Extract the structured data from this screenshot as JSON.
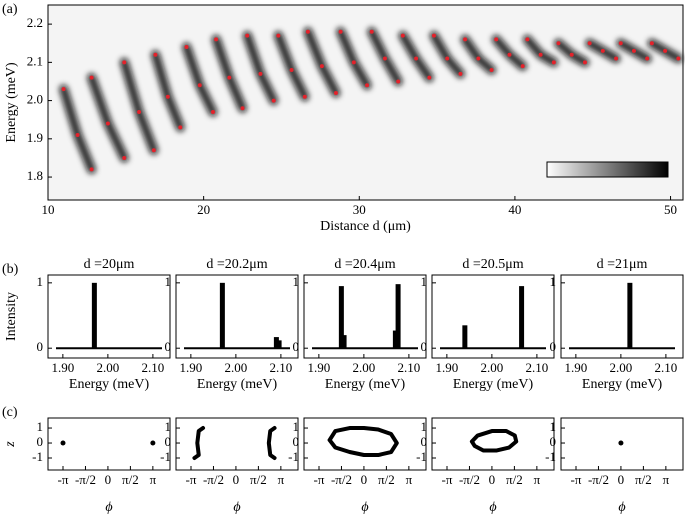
{
  "chart_data": [
    {
      "type": "scatter",
      "panel_label": "(a)",
      "xlabel": "Distance d (μm)",
      "ylabel": "Energy (meV)",
      "color": "#e3222b",
      "xlim": [
        10,
        50.8
      ],
      "ylim": [
        1.74,
        2.25
      ],
      "xticks": [
        10,
        20,
        30,
        40,
        50
      ],
      "yticks": [
        1.8,
        1.9,
        {
          "value": 2,
          "label": "2.0"
        },
        2.1,
        2.2
      ],
      "series": [
        {
          "x": [
            11.0,
            11.9,
            12.8
          ],
          "y": [
            2.03,
            1.91,
            1.82
          ]
        },
        {
          "x": [
            12.8,
            13.85,
            14.9
          ],
          "y": [
            2.06,
            1.94,
            1.85
          ]
        },
        {
          "x": [
            14.9,
            15.85,
            16.8
          ],
          "y": [
            2.1,
            1.97,
            1.87
          ]
        },
        {
          "x": [
            16.9,
            17.7,
            18.5
          ],
          "y": [
            2.12,
            2.01,
            1.93
          ]
        },
        {
          "x": [
            18.9,
            19.75,
            20.6
          ],
          "y": [
            2.14,
            2.04,
            1.97
          ]
        },
        {
          "x": [
            20.8,
            21.65,
            22.5
          ],
          "y": [
            2.16,
            2.06,
            1.98
          ]
        },
        {
          "x": [
            22.8,
            23.65,
            24.5
          ],
          "y": [
            2.17,
            2.07,
            2.0
          ]
        },
        {
          "x": [
            24.8,
            25.65,
            26.5
          ],
          "y": [
            2.17,
            2.08,
            2.01
          ]
        },
        {
          "x": [
            26.7,
            27.6,
            28.5
          ],
          "y": [
            2.18,
            2.09,
            2.02
          ]
        },
        {
          "x": [
            28.8,
            29.65,
            30.5
          ],
          "y": [
            2.18,
            2.1,
            2.04
          ]
        },
        {
          "x": [
            30.8,
            31.65,
            32.5
          ],
          "y": [
            2.18,
            2.11,
            2.05
          ]
        },
        {
          "x": [
            32.8,
            33.65,
            34.5
          ],
          "y": [
            2.17,
            2.11,
            2.06
          ]
        },
        {
          "x": [
            34.8,
            35.65,
            36.5
          ],
          "y": [
            2.17,
            2.11,
            2.07
          ]
        },
        {
          "x": [
            36.8,
            37.65,
            38.5
          ],
          "y": [
            2.16,
            2.11,
            2.08
          ]
        },
        {
          "x": [
            38.8,
            39.65,
            40.5
          ],
          "y": [
            2.16,
            2.12,
            2.09
          ]
        },
        {
          "x": [
            40.8,
            41.65,
            42.5
          ],
          "y": [
            2.16,
            2.12,
            2.1
          ]
        },
        {
          "x": [
            42.8,
            43.65,
            44.5
          ],
          "y": [
            2.15,
            2.12,
            2.1
          ]
        },
        {
          "x": [
            44.8,
            45.65,
            46.5
          ],
          "y": [
            2.15,
            2.13,
            2.11
          ]
        },
        {
          "x": [
            46.8,
            47.65,
            48.5
          ],
          "y": [
            2.15,
            2.13,
            2.11
          ]
        },
        {
          "x": [
            48.8,
            49.65,
            50.5
          ],
          "y": [
            2.15,
            2.13,
            2.11
          ]
        }
      ]
    },
    {
      "type": "bar",
      "panel_label": "(b)",
      "title": "d =20μm",
      "ylabel": "Intensity",
      "xlabel": "Energy (meV)",
      "color": "#000000",
      "xlim": [
        1.867,
        2.138
      ],
      "ylim": [
        -0.15,
        1.12
      ],
      "xticks": [
        {
          "value": 1.9,
          "label": "1.90"
        },
        {
          "value": 2,
          "label": "2.00"
        },
        {
          "value": 2.1,
          "label": "2.10"
        }
      ],
      "yticks": [
        0,
        1
      ],
      "x": [
        1.97
      ],
      "values": [
        1.0
      ]
    },
    {
      "type": "bar",
      "title": "d =20.2μm",
      "xlabel": "Energy (meV)",
      "color": "#000000",
      "xlim": [
        1.867,
        2.138
      ],
      "ylim": [
        -0.15,
        1.12
      ],
      "xticks": [
        {
          "value": 1.9,
          "label": "1.90"
        },
        {
          "value": 2,
          "label": "2.00"
        },
        {
          "value": 2.1,
          "label": "2.10"
        }
      ],
      "yticks": [
        0,
        1
      ],
      "x": [
        1.97,
        2.09,
        2.096
      ],
      "values": [
        1.0,
        0.17,
        0.12
      ]
    },
    {
      "type": "bar",
      "title": "d =20.4μm",
      "xlabel": "Energy (meV)",
      "color": "#000000",
      "xlim": [
        1.867,
        2.138
      ],
      "ylim": [
        -0.15,
        1.12
      ],
      "xticks": [
        {
          "value": 1.9,
          "label": "1.90"
        },
        {
          "value": 2,
          "label": "2.00"
        },
        {
          "value": 2.1,
          "label": "2.10"
        }
      ],
      "yticks": [
        0,
        1
      ],
      "x": [
        1.95,
        1.956,
        2.07,
        2.076
      ],
      "values": [
        0.95,
        0.2,
        0.27,
        0.98
      ]
    },
    {
      "type": "bar",
      "title": "d =20.5μm",
      "xlabel": "Energy (meV)",
      "color": "#000000",
      "xlim": [
        1.867,
        2.138
      ],
      "ylim": [
        -0.15,
        1.12
      ],
      "xticks": [
        {
          "value": 1.9,
          "label": "1.90"
        },
        {
          "value": 2,
          "label": "2.00"
        },
        {
          "value": 2.1,
          "label": "2.10"
        }
      ],
      "yticks": [
        0,
        1
      ],
      "x": [
        1.94,
        2.066
      ],
      "values": [
        0.35,
        0.95
      ]
    },
    {
      "type": "bar",
      "title": "d =21μm",
      "xlabel": "Energy (meV)",
      "color": "#000000",
      "xlim": [
        1.867,
        2.138
      ],
      "ylim": [
        -0.15,
        1.12
      ],
      "xticks": [
        {
          "value": 1.9,
          "label": "1.90"
        },
        {
          "value": 2,
          "label": "2.00"
        },
        {
          "value": 2.1,
          "label": "2.10"
        }
      ],
      "yticks": [
        0,
        1
      ],
      "x": [
        2.02
      ],
      "values": [
        1.0
      ]
    },
    {
      "type": "line",
      "panel_label": "(c)",
      "ylabel": "z",
      "xlabel": "ϕ",
      "color": "#000000",
      "xlim": [
        -4.19,
        4.34
      ],
      "ylim": [
        -1.8,
        1.67
      ],
      "xticks": [
        {
          "value": -3.1416,
          "label": "-π"
        },
        {
          "value": -1.5708,
          "label": "-π/2"
        },
        0,
        {
          "value": 1.5708,
          "label": "π/2"
        },
        {
          "value": 3.1416,
          "label": "π"
        }
      ],
      "yticks": [
        1,
        0,
        -1
      ],
      "series": [
        {
          "x": [
            -3.1416
          ],
          "y": [
            0
          ]
        },
        {
          "x": [
            3.1416
          ],
          "y": [
            0
          ]
        }
      ]
    },
    {
      "type": "line",
      "xlabel": "ϕ",
      "color": "#000000",
      "xlim": [
        -4.19,
        4.34
      ],
      "ylim": [
        -1.8,
        1.67
      ],
      "xticks": [
        {
          "value": -3.1416,
          "label": "-π"
        },
        {
          "value": -1.5708,
          "label": "-π/2"
        },
        0,
        {
          "value": 1.5708,
          "label": "π/2"
        },
        {
          "value": 3.1416,
          "label": "π"
        }
      ],
      "yticks": [
        1,
        0,
        -1
      ],
      "series": [
        {
          "x": [
            -2.3,
            -2.6,
            -2.7,
            -2.6,
            -2.9
          ],
          "y": [
            1,
            0.8,
            0,
            -0.8,
            -1
          ]
        },
        {
          "x": [
            2.7,
            2.4,
            2.3,
            2.4,
            2.7
          ],
          "y": [
            1,
            0.8,
            0,
            -0.8,
            -1
          ]
        }
      ]
    },
    {
      "type": "line",
      "xlabel": "ϕ",
      "color": "#000000",
      "xlim": [
        -4.19,
        4.34
      ],
      "ylim": [
        -1.8,
        1.67
      ],
      "xticks": [
        {
          "value": -3.1416,
          "label": "-π"
        },
        {
          "value": -1.5708,
          "label": "-π/2"
        },
        0,
        {
          "value": 1.5708,
          "label": "π/2"
        },
        {
          "value": 3.1416,
          "label": "π"
        }
      ],
      "yticks": [
        1,
        0,
        -1
      ],
      "series": [
        {
          "x": [
            -2.4,
            -2.0,
            -1,
            0,
            1,
            1.9,
            2.3,
            1.9,
            1,
            0,
            -1,
            -2.0,
            -2.4
          ],
          "y": [
            0.2,
            0.8,
            1.0,
            1.0,
            0.9,
            0.6,
            0,
            -0.6,
            -0.8,
            -0.8,
            -0.6,
            -0.3,
            0.2
          ]
        }
      ]
    },
    {
      "type": "line",
      "xlabel": "ϕ",
      "color": "#000000",
      "xlim": [
        -4.19,
        4.34
      ],
      "ylim": [
        -1.8,
        1.67
      ],
      "xticks": [
        {
          "value": -3.1416,
          "label": "-π"
        },
        {
          "value": -1.5708,
          "label": "-π/2"
        },
        0,
        {
          "value": 1.5708,
          "label": "π/2"
        },
        {
          "value": 3.1416,
          "label": "π"
        }
      ],
      "yticks": [
        1,
        0,
        -1
      ],
      "series": [
        {
          "x": [
            -1.4,
            -1,
            0,
            1,
            1.6,
            1.7,
            1.2,
            0.3,
            -0.6,
            -1.2,
            -1.4
          ],
          "y": [
            0.1,
            0.5,
            0.8,
            0.8,
            0.5,
            0.1,
            -0.3,
            -0.5,
            -0.5,
            -0.2,
            0.1
          ]
        }
      ]
    },
    {
      "type": "line",
      "xlabel": "ϕ",
      "color": "#000000",
      "xlim": [
        -4.19,
        4.34
      ],
      "ylim": [
        -1.8,
        1.67
      ],
      "xticks": [
        {
          "value": -3.1416,
          "label": "-π"
        },
        {
          "value": -1.5708,
          "label": "-π/2"
        },
        0,
        {
          "value": 1.5708,
          "label": "π/2"
        },
        {
          "value": 3.1416,
          "label": "π"
        }
      ],
      "yticks": [
        1,
        0,
        -1
      ],
      "series": [
        {
          "x": [
            0
          ],
          "y": [
            0
          ]
        }
      ]
    }
  ]
}
